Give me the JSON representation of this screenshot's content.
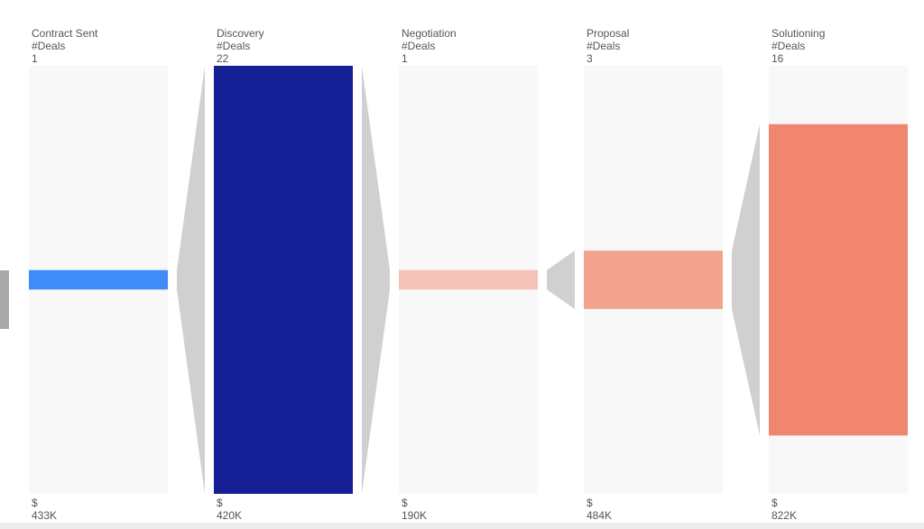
{
  "chart_data": {
    "type": "funnel",
    "categories": [
      "Contract Sent",
      "Discovery",
      "Negotiation",
      "Proposal",
      "Solutioning"
    ],
    "colors": [
      "#3f8cf8",
      "#141f96",
      "#f4c2b8",
      "#f2a48f",
      "#f08670"
    ],
    "series": [
      {
        "name": "#Deals",
        "values": [
          1,
          22,
          1,
          3,
          16
        ]
      },
      {
        "name": "$",
        "values": [
          433000,
          420000,
          190000,
          484000,
          822000
        ],
        "value_labels": [
          "433K",
          "420K",
          "190K",
          "484K",
          "822K"
        ]
      }
    ]
  }
}
